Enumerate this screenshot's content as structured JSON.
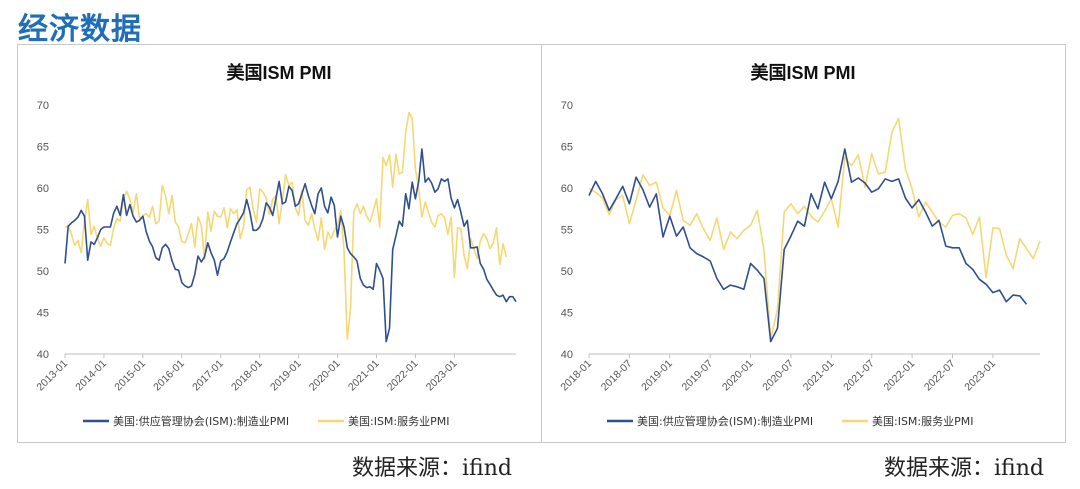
{
  "page": {
    "title": "经济数据",
    "source_left": "数据来源：ifind",
    "source_right": "数据来源：ifind"
  },
  "colors": {
    "manufacturing": "#2f4f8f",
    "services": "#f5d873",
    "axis": "#bfbfbf",
    "title_blue": "#1f6fb8"
  },
  "chart_data": [
    {
      "type": "line",
      "title": "美国ISM  PMI",
      "ylim": [
        40,
        70
      ],
      "yticks": [
        40,
        45,
        50,
        55,
        60,
        65,
        70
      ],
      "xticks": [
        "2013-01",
        "2014-01",
        "2015-01",
        "2016-01",
        "2017-01",
        "2018-01",
        "2019-01",
        "2020-01",
        "2021-01",
        "2022-01",
        "2023-01"
      ],
      "x_start": "2013-01",
      "grid": false,
      "legend_position": "bottom",
      "series": [
        {
          "name": "美国:供应管理协会(ISM):制造业PMI",
          "values": [
            50.9,
            55.4,
            55.8,
            56.1,
            56.5,
            57.3,
            56.6,
            51.3,
            53.5,
            53.2,
            54.0,
            55.0,
            55.3,
            55.3,
            55.3,
            57.0,
            57.8,
            56.7,
            59.2,
            56.7,
            58.0,
            56.6,
            55.9,
            56.1,
            56.6,
            54.8,
            53.6,
            52.9,
            51.6,
            51.3,
            52.8,
            53.2,
            52.7,
            51.2,
            50.2,
            50.1,
            48.6,
            48.2,
            48.0,
            48.2,
            49.6,
            51.8,
            51.1,
            51.7,
            53.4,
            52.2,
            51.3,
            49.5,
            51.2,
            51.5,
            52.3,
            53.5,
            54.6,
            55.7,
            56.3,
            57.0,
            58.6,
            57.1,
            54.9,
            54.9,
            55.3,
            56.3,
            58.2,
            57.7,
            56.7,
            58.7,
            60.8,
            58.1,
            58.3,
            60.2,
            59.7,
            57.8,
            58.1,
            59.3,
            60.5,
            59.1,
            57.9,
            56.9,
            59.3,
            60.0,
            57.8,
            57.0,
            58.9,
            57.9,
            54.1,
            56.6,
            55.3,
            52.8,
            52.1,
            51.7,
            51.2,
            49.1,
            48.3,
            48.0,
            48.1,
            47.8,
            50.9,
            50.1,
            49.1,
            41.5,
            43.1,
            52.6,
            54.2,
            56.0,
            55.4,
            59.3,
            57.5,
            60.7,
            58.7,
            60.8,
            64.7,
            60.7,
            61.2,
            60.6,
            59.5,
            59.9,
            61.1,
            60.8,
            61.1,
            58.8,
            57.6,
            58.6,
            57.1,
            55.4,
            56.1,
            52.8,
            52.8,
            52.9,
            50.9,
            50.2,
            49.0,
            48.4,
            47.7,
            47.1,
            46.9,
            47.1,
            46.3,
            46.9,
            46.9,
            46.3
          ]
        },
        {
          "name": "美国:ISM:服务业PMI",
          "values": [
            55.2,
            55.5,
            54.4,
            53.1,
            53.7,
            52.2,
            56.0,
            58.6,
            54.4,
            55.4,
            53.9,
            53.0,
            54.0,
            53.3,
            53.1,
            55.2,
            56.3,
            56.0,
            58.7,
            59.6,
            58.6,
            57.1,
            59.3,
            56.2,
            56.7,
            56.9,
            56.5,
            57.8,
            55.7,
            56.0,
            60.3,
            59.0,
            56.9,
            59.1,
            55.9,
            55.3,
            53.5,
            53.4,
            54.5,
            55.7,
            52.9,
            56.5,
            55.5,
            51.4,
            57.1,
            54.8,
            57.2,
            56.6,
            56.5,
            57.6,
            55.2,
            57.5,
            56.9,
            57.4,
            53.9,
            55.3,
            59.8,
            60.1,
            57.4,
            55.9,
            59.9,
            59.5,
            58.8,
            56.8,
            58.6,
            59.1,
            55.7,
            58.5,
            61.6,
            60.3,
            60.7,
            57.6,
            56.7,
            59.7,
            56.1,
            55.5,
            56.9,
            55.1,
            53.7,
            56.4,
            52.6,
            54.7,
            53.9,
            54.9,
            55.5,
            57.3,
            52.5,
            41.8,
            45.4,
            57.1,
            58.1,
            56.9,
            57.8,
            56.6,
            55.9,
            57.2,
            58.7,
            55.3,
            63.7,
            62.7,
            64.0,
            60.1,
            64.1,
            61.7,
            61.9,
            66.7,
            69.1,
            68.4,
            62.3,
            59.9,
            56.5,
            58.3,
            57.1,
            55.9,
            55.3,
            56.7,
            56.9,
            56.4,
            54.4,
            56.5,
            49.2,
            55.2,
            55.1,
            51.9,
            50.3,
            53.9,
            52.7,
            51.5,
            53.6,
            54.5,
            53.9,
            52.7,
            53.4,
            55.2,
            50.8,
            53.3,
            51.7
          ]
        }
      ]
    },
    {
      "type": "line",
      "title": "美国ISM  PMI",
      "ylim": [
        40,
        70
      ],
      "yticks": [
        40,
        45,
        50,
        55,
        60,
        65,
        70
      ],
      "xticks": [
        "2018-01",
        "2018-07",
        "2019-01",
        "2019-07",
        "2020-01",
        "2020-07",
        "2021-01",
        "2021-07",
        "2022-01",
        "2022-07",
        "2023-01"
      ],
      "x_start": "2018-01",
      "grid": false,
      "legend_position": "bottom",
      "series": [
        {
          "name": "美国:供应管理协会(ISM):制造业PMI",
          "values": [
            59.1,
            60.8,
            59.3,
            57.3,
            58.7,
            60.2,
            58.1,
            61.3,
            59.8,
            57.7,
            59.3,
            54.1,
            56.6,
            54.2,
            55.3,
            52.8,
            52.1,
            51.7,
            51.2,
            49.1,
            47.8,
            48.3,
            48.1,
            47.8,
            50.9,
            50.1,
            49.1,
            41.5,
            43.1,
            52.6,
            54.2,
            56.0,
            55.4,
            59.3,
            57.5,
            60.7,
            58.7,
            60.8,
            64.7,
            60.7,
            61.2,
            60.6,
            59.5,
            59.9,
            61.1,
            60.8,
            61.1,
            58.8,
            57.6,
            58.6,
            57.1,
            55.4,
            56.1,
            53.0,
            52.8,
            52.8,
            50.9,
            50.2,
            49.0,
            48.4,
            47.4,
            47.7,
            46.3,
            47.1,
            47.0,
            46.0
          ]
        },
        {
          "name": "美国:ISM:服务业PMI",
          "values": [
            59.9,
            59.5,
            58.8,
            56.8,
            58.6,
            59.1,
            55.7,
            58.5,
            61.6,
            60.3,
            60.7,
            57.6,
            56.7,
            59.7,
            56.1,
            55.5,
            56.9,
            55.1,
            53.7,
            56.4,
            52.6,
            54.7,
            53.9,
            54.9,
            55.5,
            57.3,
            52.5,
            41.8,
            45.4,
            57.1,
            58.1,
            56.9,
            57.8,
            56.6,
            55.9,
            57.2,
            58.7,
            55.3,
            63.7,
            62.7,
            64.0,
            60.1,
            64.1,
            61.7,
            61.9,
            66.7,
            68.4,
            62.3,
            59.9,
            56.5,
            58.3,
            57.1,
            55.9,
            55.3,
            56.7,
            56.9,
            56.4,
            54.4,
            56.5,
            49.2,
            55.2,
            55.1,
            51.9,
            50.3,
            53.9,
            52.7,
            51.5,
            53.6
          ]
        }
      ]
    }
  ]
}
